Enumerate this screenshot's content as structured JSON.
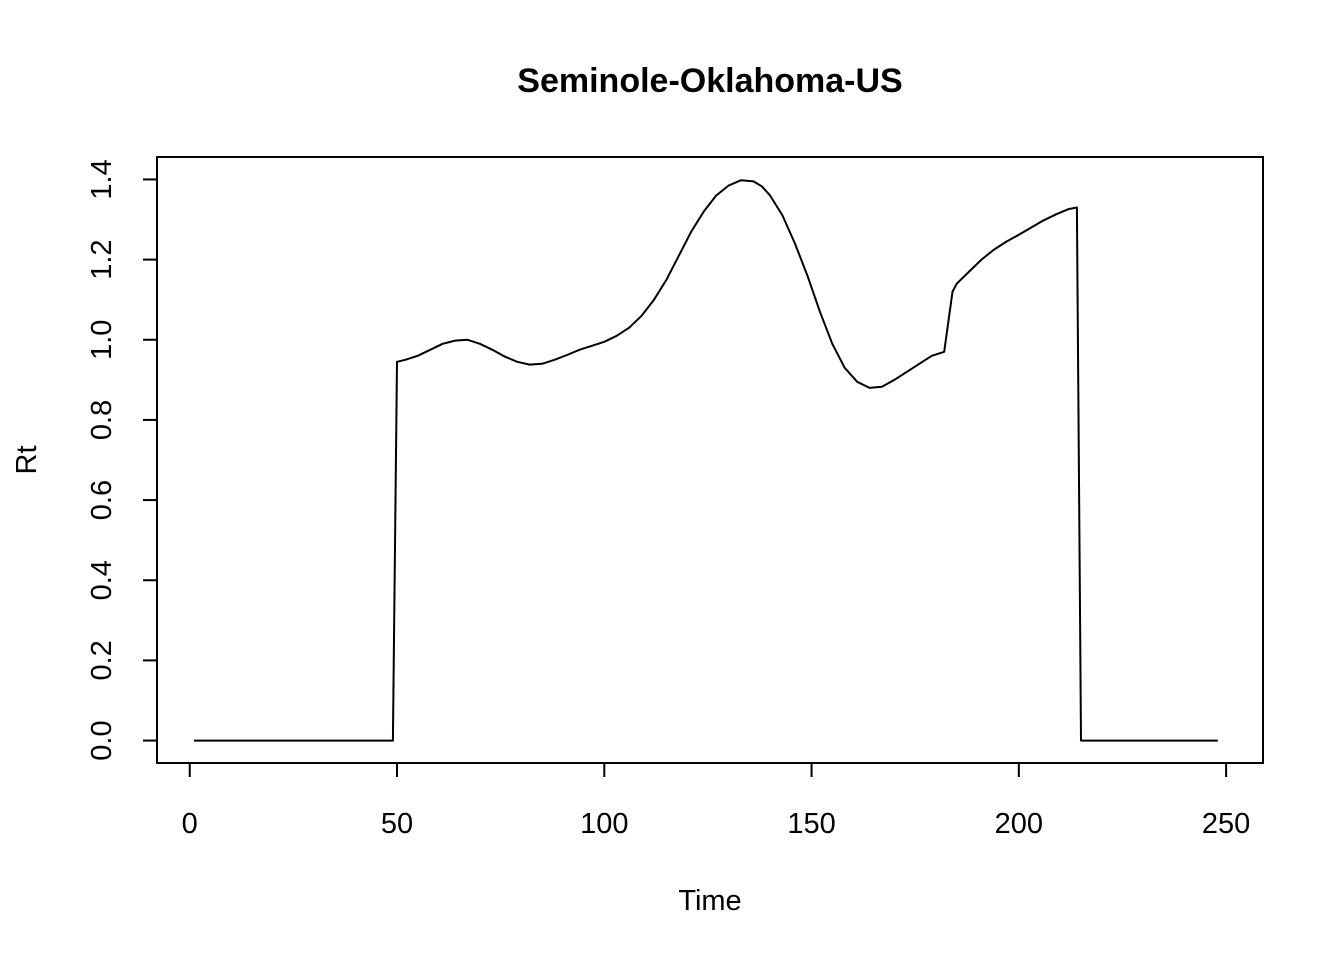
{
  "chart_data": {
    "type": "line",
    "title": "Seminole-Oklahoma-US",
    "xlabel": "Time",
    "ylabel": "Rt",
    "xlim": [
      -7.9,
      258.9
    ],
    "ylim": [
      -0.056,
      1.456
    ],
    "x_ticks": [
      0,
      50,
      100,
      150,
      200,
      250
    ],
    "y_ticks": [
      0.0,
      0.2,
      0.4,
      0.6,
      0.8,
      1.0,
      1.2,
      1.4
    ],
    "x_tick_labels": [
      "0",
      "50",
      "100",
      "150",
      "200",
      "250"
    ],
    "y_tick_labels": [
      "0.0",
      "0.2",
      "0.4",
      "0.6",
      "0.8",
      "1.0",
      "1.2",
      "1.4"
    ],
    "grid": false,
    "line_color": "#000000",
    "series": [
      {
        "x": [
          1,
          49,
          50,
          52,
          55,
          58,
          61,
          64,
          67,
          70,
          73,
          76,
          79,
          82,
          85,
          88,
          91,
          94,
          97,
          100,
          103,
          106,
          109,
          112,
          115,
          118,
          121,
          124,
          127,
          130,
          133,
          136,
          138,
          140,
          143,
          146,
          149,
          152,
          155,
          158,
          161,
          164,
          167,
          170,
          173,
          176,
          179,
          182,
          184,
          185,
          188,
          191,
          194,
          197,
          200,
          203,
          206,
          209,
          212,
          214,
          215,
          248
        ],
        "y": [
          0,
          0,
          0.945,
          0.95,
          0.96,
          0.975,
          0.99,
          0.998,
          1.0,
          0.99,
          0.975,
          0.958,
          0.945,
          0.938,
          0.94,
          0.95,
          0.962,
          0.975,
          0.985,
          0.995,
          1.01,
          1.03,
          1.06,
          1.1,
          1.15,
          1.21,
          1.27,
          1.32,
          1.36,
          1.385,
          1.398,
          1.395,
          1.383,
          1.36,
          1.31,
          1.24,
          1.16,
          1.07,
          0.99,
          0.93,
          0.895,
          0.88,
          0.883,
          0.9,
          0.92,
          0.94,
          0.96,
          0.97,
          1.12,
          1.14,
          1.17,
          1.2,
          1.225,
          1.245,
          1.262,
          1.28,
          1.298,
          1.313,
          1.326,
          1.33,
          0,
          0
        ]
      }
    ]
  }
}
